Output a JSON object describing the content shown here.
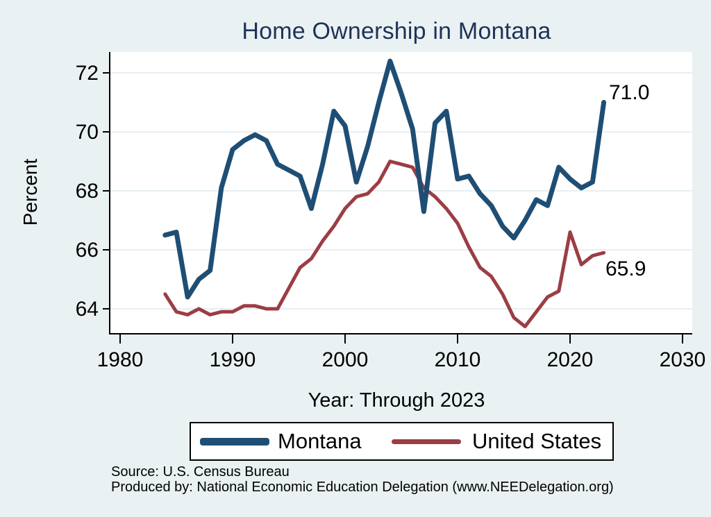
{
  "title": "Home Ownership in Montana",
  "annotations": {
    "montana_end": "71.0",
    "us_end": "65.9"
  },
  "legend": {
    "items": [
      {
        "label": "Montana",
        "color": "#1f4e74"
      },
      {
        "label": "United States",
        "color": "#9c3d44"
      }
    ]
  },
  "footer": {
    "source": "Source: U.S. Census Bureau",
    "produced_by": "Produced by: National Economic Education Delegation (www.NEEDelegation.org)"
  },
  "chart_data": {
    "type": "line",
    "title": "Home Ownership in Montana",
    "xlabel": "Year: Through 2023",
    "ylabel": "Percent",
    "xlim": [
      1980,
      2030
    ],
    "ylim": [
      63.1,
      72.7
    ],
    "x_ticks": [
      1980,
      1990,
      2000,
      2010,
      2020,
      2030
    ],
    "y_ticks": [
      64,
      66,
      68,
      70,
      72
    ],
    "grid": "horizontal",
    "legend_position": "bottom",
    "colors": {
      "background": "#eaf1f3",
      "plot_background": "#ffffff",
      "gridline": "#dfe9ee",
      "axis": "#000000",
      "title": "#1d3357"
    },
    "x": [
      1984,
      1985,
      1986,
      1987,
      1988,
      1989,
      1990,
      1991,
      1992,
      1993,
      1994,
      1995,
      1996,
      1997,
      1998,
      1999,
      2000,
      2001,
      2002,
      2003,
      2004,
      2005,
      2006,
      2007,
      2008,
      2009,
      2010,
      2011,
      2012,
      2013,
      2014,
      2015,
      2016,
      2017,
      2018,
      2019,
      2020,
      2021,
      2022,
      2023
    ],
    "series": [
      {
        "name": "Montana",
        "color": "#1f4e74",
        "stroke_width": 7,
        "values": [
          66.5,
          66.6,
          64.4,
          65.0,
          65.3,
          68.1,
          69.4,
          69.7,
          69.9,
          69.7,
          68.9,
          68.7,
          68.5,
          67.4,
          68.9,
          70.7,
          70.2,
          68.3,
          69.5,
          71.0,
          72.4,
          71.3,
          70.1,
          67.3,
          70.3,
          70.7,
          68.4,
          68.5,
          67.9,
          67.5,
          66.8,
          66.4,
          67.0,
          67.7,
          67.5,
          68.8,
          68.4,
          68.1,
          68.3,
          71.0
        ]
      },
      {
        "name": "United States",
        "color": "#9c3d44",
        "stroke_width": 5,
        "values": [
          64.5,
          63.9,
          63.8,
          64.0,
          63.8,
          63.9,
          63.9,
          64.1,
          64.1,
          64.0,
          64.0,
          64.7,
          65.4,
          65.7,
          66.3,
          66.8,
          67.4,
          67.8,
          67.9,
          68.3,
          69.0,
          68.9,
          68.8,
          68.1,
          67.8,
          67.4,
          66.9,
          66.1,
          65.4,
          65.1,
          64.5,
          63.7,
          63.4,
          63.9,
          64.4,
          64.6,
          66.6,
          65.5,
          65.8,
          65.9
        ]
      }
    ],
    "end_labels": [
      {
        "series": "Montana",
        "text": "71.0"
      },
      {
        "series": "United States",
        "text": "65.9"
      }
    ]
  }
}
